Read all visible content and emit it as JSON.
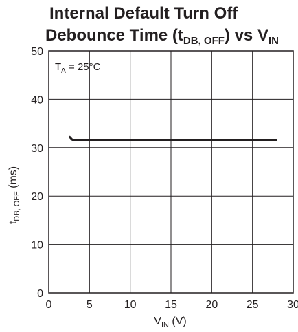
{
  "chart_data": {
    "type": "line",
    "title": {
      "line1": "Internal Default Turn Off",
      "line2_prefix": "Debounce Time (t",
      "line2_sub": "DB, OFF",
      "line2_mid": ") vs V",
      "line2_sub2": "IN"
    },
    "xlabel": {
      "main": "V",
      "sub": "IN",
      "rest": " (V)"
    },
    "ylabel": {
      "main": "t",
      "sub": "DB, OFF",
      "rest": " (ms)"
    },
    "xlim": [
      0,
      30
    ],
    "ylim": [
      0,
      50
    ],
    "xticks": [
      0,
      5,
      10,
      15,
      20,
      25,
      30
    ],
    "yticks": [
      0,
      10,
      20,
      30,
      40,
      50
    ],
    "grid": true,
    "annotation": {
      "main": "T",
      "sub": "A",
      "rest": " = 25°C"
    },
    "series": [
      {
        "x": [
          2.5,
          2.9,
          5,
          10,
          15,
          20,
          25,
          28
        ],
        "y": [
          32.3,
          31.6,
          31.6,
          31.6,
          31.6,
          31.6,
          31.6,
          31.6
        ]
      }
    ]
  }
}
